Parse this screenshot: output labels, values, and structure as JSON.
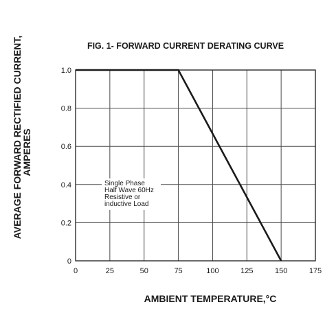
{
  "chart_data": {
    "type": "line",
    "title": "FIG. 1- FORWARD CURRENT DERATING CURVE",
    "xlabel": "AMBIENT TEMPERATURE,°C",
    "ylabel": {
      "line1": "AVERAGE FORWARD RECTIFIED CURRENT,",
      "line2": "AMPERES"
    },
    "xlim": [
      0,
      175
    ],
    "ylim": [
      0,
      1.0
    ],
    "x_ticks": [
      0,
      25,
      50,
      75,
      100,
      125,
      150,
      175
    ],
    "x_tick_labels": [
      "0",
      "25",
      "50",
      "75",
      "100",
      "125",
      "150",
      "175"
    ],
    "y_ticks": [
      0,
      0.2,
      0.4,
      0.6,
      0.8,
      1.0
    ],
    "y_tick_labels": [
      "0",
      "0.2",
      "0.4",
      "0.6",
      "0.8",
      "1.0"
    ],
    "grid": true,
    "series": [
      {
        "x": [
          0,
          75,
          150
        ],
        "y": [
          1.0,
          1.0,
          0
        ],
        "color": "#1a1a1a"
      }
    ],
    "annotation": {
      "lines": [
        "Single Phase",
        "Half Wave 60Hz",
        "Resistive or",
        "inductive Load"
      ]
    }
  }
}
